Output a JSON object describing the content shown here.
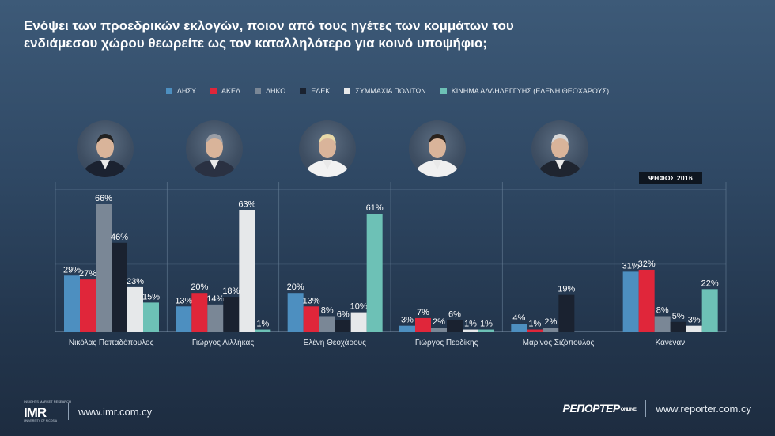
{
  "title": {
    "line1": "Ενόψει των προεδρικών εκλογών, ποιον από τους ηγέτες των κομμάτων του",
    "line2": "ενδιάμεσου χώρου θεωρείτε ως τον καταλληλότερο για κοινό υποψήφιο;"
  },
  "badge_label": "ΨΗΦΟΣ 2016",
  "footer": {
    "left_site": "www.imr.com.cy",
    "right_site": "www.reporter.com.cy",
    "imr_logo": "IMR",
    "imr_logo_top": "INSIGHTS MARKET RESEARCH",
    "imr_logo_bottom": "UNIVERSITY OF NICOSIA",
    "reporter_logo": "ΡΕΠΟΡΤΕΡ",
    "reporter_logo_suffix": "ONLINE"
  },
  "photos": [
    {
      "name": "portrait-papadopoulos-icon",
      "suit": "#1b2230",
      "hair": "#222"
    },
    {
      "name": "portrait-lillikas-icon",
      "suit": "#2a3142",
      "hair": "#9a9ea6"
    },
    {
      "name": "portrait-theocharous-icon",
      "suit": "#f2f2f2",
      "hair": "#e8d9a8"
    },
    {
      "name": "portrait-perdikis-icon",
      "suit": "#f0f0f0",
      "hair": "#2a221c"
    },
    {
      "name": "portrait-sizopoulos-icon",
      "suit": "#1f2530",
      "hair": "#d6d6d6"
    }
  ],
  "chart_data": {
    "type": "bar",
    "categories": [
      "Νικόλας Παπαδόπουλος",
      "Γιώργος Λιλλήκας",
      "Ελένη Θεοχάρους",
      "Γιώργος Περδίκης",
      "Μαρίνος Σιζόπουλος",
      "Κανέναν"
    ],
    "series": [
      {
        "name": "ΔΗΣΥ",
        "color": "#4d8fc0",
        "values": [
          29,
          13,
          20,
          3,
          4,
          31
        ]
      },
      {
        "name": "ΑΚΕΛ",
        "color": "#e0263a",
        "values": [
          27,
          20,
          13,
          7,
          1,
          32
        ]
      },
      {
        "name": "ΔΗΚΟ",
        "color": "#7a8796",
        "values": [
          66,
          14,
          8,
          2,
          2,
          8
        ]
      },
      {
        "name": "ΕΔΕΚ",
        "color": "#1a2230",
        "values": [
          46,
          18,
          6,
          6,
          19,
          5
        ]
      },
      {
        "name": "ΣΥΜΜΑΧΙΑ ΠΟΛΙΤΩΝ",
        "color": "#e6e8ea",
        "values": [
          23,
          63,
          10,
          1,
          null,
          3
        ]
      },
      {
        "name": "ΚΙΝΗΜΑ ΑΛΛΗΛΕΓΓΥΗΣ (ΕΛΕΝΗ ΘΕΟΧΑΡΟΥΣ)",
        "color": "#6dc1b6",
        "values": [
          15,
          1,
          61,
          1,
          null,
          22
        ]
      }
    ],
    "value_suffix": "%",
    "ylim": [
      0,
      70
    ],
    "legend_position": "top-center",
    "annotation": "ΨΗΦΟΣ 2016",
    "grid": true
  }
}
